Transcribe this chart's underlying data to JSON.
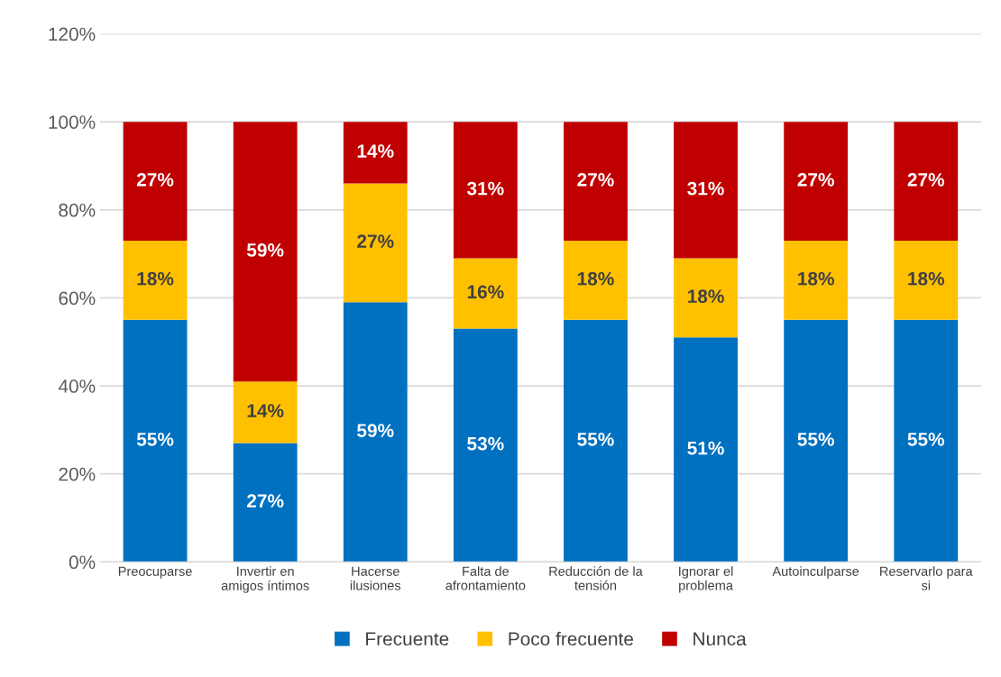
{
  "chart_data": {
    "type": "bar",
    "stacked": true,
    "categories": [
      "Preocuparse",
      "Invertir en\namigos íntimos",
      "Hacerse\nilusiones",
      "Falta de\nafrontamiento",
      "Reducción de la\ntensión",
      "Ignorar el\nproblema",
      "Autoinculparse",
      "Reservarlo para\nsi"
    ],
    "series": [
      {
        "name": "Frecuente",
        "color": "#0070c0",
        "values": [
          55,
          27,
          59,
          53,
          55,
          51,
          55,
          55
        ],
        "value_labels": [
          "55%",
          "27%",
          "59%",
          "53%",
          "55%",
          "51%",
          "55%",
          "55%"
        ]
      },
      {
        "name": "Poco frecuente",
        "color": "#ffc000",
        "values": [
          18,
          14,
          27,
          16,
          18,
          18,
          18,
          18
        ],
        "value_labels": [
          "18%",
          "14%",
          "27%",
          "16%",
          "18%",
          "18%",
          "18%",
          "18%"
        ]
      },
      {
        "name": "Nunca",
        "color": "#c00000",
        "values": [
          27,
          59,
          14,
          31,
          27,
          31,
          27,
          27
        ],
        "value_labels": [
          "27%",
          "59%",
          "14%",
          "31%",
          "27%",
          "31%",
          "27%",
          "27%"
        ]
      }
    ],
    "ylim": [
      0,
      120
    ],
    "yticks": [
      {
        "value": 0,
        "label": "0%"
      },
      {
        "value": 20,
        "label": "20%"
      },
      {
        "value": 40,
        "label": "40%"
      },
      {
        "value": 60,
        "label": "60%"
      },
      {
        "value": 80,
        "label": "80%"
      },
      {
        "value": 100,
        "label": "100%"
      },
      {
        "value": 120,
        "label": "120%"
      }
    ],
    "grid": "y",
    "legend": "bottom"
  }
}
